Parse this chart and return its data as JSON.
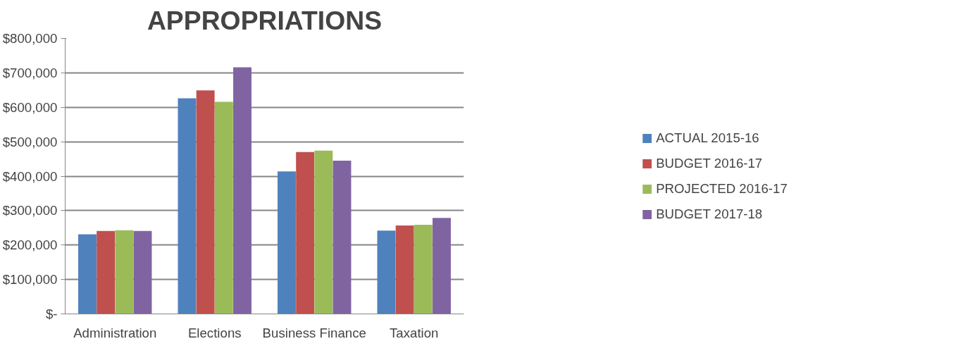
{
  "chart_data": {
    "type": "bar",
    "title": "APPROPRIATIONS",
    "categories": [
      "Administration",
      "Elections",
      "Business Finance",
      "Taxation"
    ],
    "series": [
      {
        "name": "ACTUAL 2015-16",
        "color": "#4f81bd",
        "values": [
          231000,
          626000,
          414000,
          242000
        ]
      },
      {
        "name": "BUDGET 2016-17",
        "color": "#c0504d",
        "values": [
          241000,
          649000,
          470000,
          257000
        ]
      },
      {
        "name": "PROJECTED 2016-17",
        "color": "#9bbb59",
        "values": [
          243000,
          616000,
          474000,
          259000
        ]
      },
      {
        "name": "BUDGET 2017-18",
        "color": "#8064a2",
        "values": [
          241000,
          716000,
          445000,
          279000
        ]
      }
    ],
    "ylim": [
      0,
      800000
    ],
    "yticks": [
      {
        "value": 0,
        "label": "$-"
      },
      {
        "value": 100000,
        "label": "$100,000"
      },
      {
        "value": 200000,
        "label": "$200,000"
      },
      {
        "value": 300000,
        "label": "$300,000"
      },
      {
        "value": 400000,
        "label": "$400,000"
      },
      {
        "value": 500000,
        "label": "$500,000"
      },
      {
        "value": 600000,
        "label": "$600,000"
      },
      {
        "value": 700000,
        "label": "$700,000"
      },
      {
        "value": 800000,
        "label": "$800,000"
      }
    ],
    "grid": "y",
    "legend": "right"
  }
}
